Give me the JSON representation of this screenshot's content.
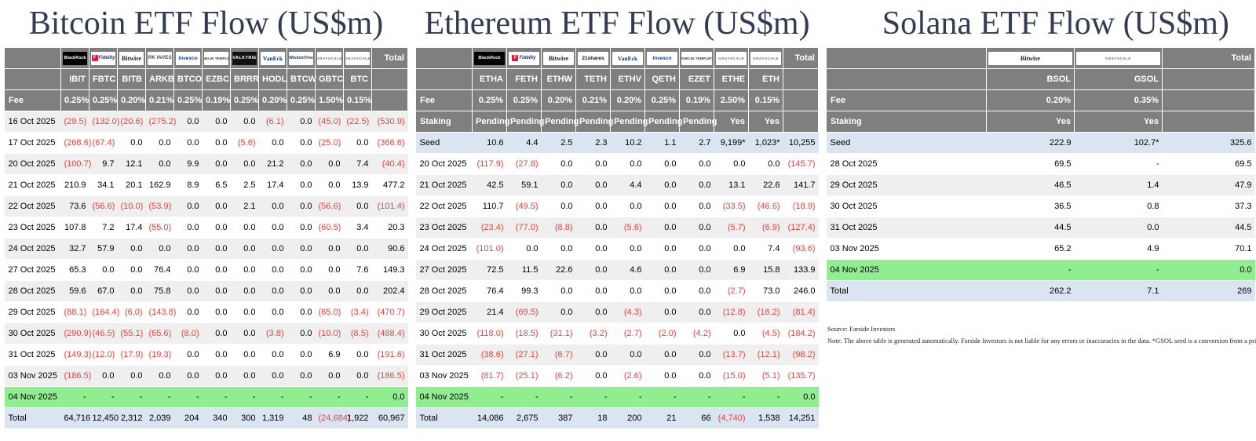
{
  "page": {
    "source_line": "Source: Farside Investors",
    "note_line": "Note: The above table is generated automatically. Farside Investors is not liable for any errors or inaccuracies in the data. *GSOL seed is a conversion from a prior product."
  },
  "colors": {
    "header_bg": "#7f7f7f",
    "title_text": "#333c55",
    "negative_red": "#f0413c",
    "latest_row_green": "#90ee90",
    "total_row_blue": "#dbe4f1",
    "stripe_gray": "#efefef"
  },
  "tables": [
    {
      "id": "bitcoin",
      "title": "Bitcoin ETF Flow (US$m)",
      "total_label": "Total",
      "providers": [
        "BlackRock",
        "Fidelity",
        "Bitwise",
        "ARK INVEST",
        "Invesco",
        "FRANKLIN TEMPLETON",
        "VALKYRIE",
        "VanEck",
        "WisdomTree",
        "GRAYSCALE",
        "GRAYSCALE"
      ],
      "tickers": [
        "IBIT",
        "FBTC",
        "BITB",
        "ARKB",
        "BTCO",
        "EZBC",
        "BRRR",
        "HODL",
        "BTCW",
        "GBTC",
        "BTC"
      ],
      "meta_rows": [
        {
          "label": "Fee",
          "values": [
            "0.25%",
            "0.25%",
            "0.20%",
            "0.21%",
            "0.25%",
            "0.19%",
            "0.25%",
            "0.20%",
            "0.25%",
            "1.50%",
            "0.15%"
          ]
        }
      ],
      "rows": [
        {
          "label": "16 Oct 2025",
          "kind": "date",
          "values": [
            "(29.5)",
            "(132.0)",
            "(20.6)",
            "(275.2)",
            "0.0",
            "0.0",
            "0.0",
            "(6.1)",
            "0.0",
            "(45.0)",
            "(22.5)"
          ],
          "total": "(530.9)"
        },
        {
          "label": "17 Oct 2025",
          "kind": "date",
          "values": [
            "(268.6)",
            "(67.4)",
            "0.0",
            "0.0",
            "0.0",
            "0.0",
            "(5.6)",
            "0.0",
            "0.0",
            "(25.0)",
            "0.0"
          ],
          "total": "(366.6)"
        },
        {
          "label": "20 Oct 2025",
          "kind": "date",
          "values": [
            "(100.7)",
            "9.7",
            "12.1",
            "0.0",
            "9.9",
            "0.0",
            "0.0",
            "21.2",
            "0.0",
            "0.0",
            "7.4"
          ],
          "total": "(40.4)"
        },
        {
          "label": "21 Oct 2025",
          "kind": "date",
          "values": [
            "210.9",
            "34.1",
            "20.1",
            "162.9",
            "8.9",
            "6.5",
            "2.5",
            "17.4",
            "0.0",
            "0.0",
            "13.9"
          ],
          "total": "477.2"
        },
        {
          "label": "22 Oct 2025",
          "kind": "date",
          "values": [
            "73.6",
            "(56.6)",
            "(10.0)",
            "(53.9)",
            "0.0",
            "0.0",
            "2.1",
            "0.0",
            "0.0",
            "(56.6)",
            "0.0"
          ],
          "total": "(101.4)"
        },
        {
          "label": "23 Oct 2025",
          "kind": "date",
          "values": [
            "107.8",
            "7.2",
            "17.4",
            "(55.0)",
            "0.0",
            "0.0",
            "0.0",
            "0.0",
            "0.0",
            "(60.5)",
            "3.4"
          ],
          "total": "20.3"
        },
        {
          "label": "24 Oct 2025",
          "kind": "date",
          "values": [
            "32.7",
            "57.9",
            "0.0",
            "0.0",
            "0.0",
            "0.0",
            "0.0",
            "0.0",
            "0.0",
            "0.0",
            "0.0"
          ],
          "total": "90.6"
        },
        {
          "label": "27 Oct 2025",
          "kind": "date",
          "values": [
            "65.3",
            "0.0",
            "0.0",
            "76.4",
            "0.0",
            "0.0",
            "0.0",
            "0.0",
            "0.0",
            "0.0",
            "7.6"
          ],
          "total": "149.3"
        },
        {
          "label": "28 Oct 2025",
          "kind": "date",
          "values": [
            "59.6",
            "67.0",
            "0.0",
            "75.8",
            "0.0",
            "0.0",
            "0.0",
            "0.0",
            "0.0",
            "0.0",
            "0.0"
          ],
          "total": "202.4"
        },
        {
          "label": "29 Oct 2025",
          "kind": "date",
          "values": [
            "(88.1)",
            "(164.4)",
            "(6.0)",
            "(143.8)",
            "0.0",
            "0.0",
            "0.0",
            "0.0",
            "0.0",
            "(65.0)",
            "(3.4)"
          ],
          "total": "(470.7)"
        },
        {
          "label": "30 Oct 2025",
          "kind": "date",
          "values": [
            "(290.9)",
            "(46.5)",
            "(55.1)",
            "(65.6)",
            "(8.0)",
            "0.0",
            "0.0",
            "(3.8)",
            "0.0",
            "(10.0)",
            "(8.5)"
          ],
          "total": "(488.4)"
        },
        {
          "label": "31 Oct 2025",
          "kind": "date",
          "values": [
            "(149.3)",
            "(12.0)",
            "(17.9)",
            "(19.3)",
            "0.0",
            "0.0",
            "0.0",
            "0.0",
            "0.0",
            "6.9",
            "0.0"
          ],
          "total": "(191.6)"
        },
        {
          "label": "03 Nov 2025",
          "kind": "date",
          "values": [
            "(186.5)",
            "0.0",
            "0.0",
            "0.0",
            "0.0",
            "0.0",
            "0.0",
            "0.0",
            "0.0",
            "0.0",
            "0.0"
          ],
          "total": "(186.5)"
        },
        {
          "label": "04 Nov 2025",
          "kind": "latest",
          "values": [
            "-",
            "-",
            "-",
            "-",
            "-",
            "-",
            "-",
            "-",
            "-",
            "-",
            "-"
          ],
          "total": "0.0"
        },
        {
          "label": "Total",
          "kind": "total",
          "values": [
            "64,716",
            "12,450",
            "2,312",
            "2,039",
            "204",
            "340",
            "300",
            "1,319",
            "48",
            "(24,684)",
            "1,922"
          ],
          "total": "60,967"
        }
      ]
    },
    {
      "id": "ethereum",
      "title": "Ethereum ETF Flow (US$m)",
      "total_label": "Total",
      "providers": [
        "BlackRock",
        "Fidelity",
        "Bitwise",
        "21shares",
        "VanEck",
        "Invesco",
        "FRANKLIN TEMPLETON",
        "GRAYSCALE",
        "GRAYSCALE"
      ],
      "tickers": [
        "ETHA",
        "FETH",
        "ETHW",
        "TETH",
        "ETHV",
        "QETH",
        "EZET",
        "ETHE",
        "ETH"
      ],
      "meta_rows": [
        {
          "label": "Fee",
          "values": [
            "0.25%",
            "0.25%",
            "0.20%",
            "0.21%",
            "0.20%",
            "0.25%",
            "0.19%",
            "2.50%",
            "0.15%"
          ]
        },
        {
          "label": "Staking",
          "values": [
            "Pending",
            "Pending",
            "Pending",
            "Pending",
            "Pending",
            "Pending",
            "Pending",
            "Yes",
            "Yes"
          ]
        }
      ],
      "rows": [
        {
          "label": "Seed",
          "kind": "seed",
          "values": [
            "10.6",
            "4.4",
            "2.5",
            "2.3",
            "10.2",
            "1.1",
            "2.7",
            "9,199*",
            "1,023*"
          ],
          "total": "10,255"
        },
        {
          "label": "20 Oct 2025",
          "kind": "date",
          "values": [
            "(117.9)",
            "(27.8)",
            "0.0",
            "0.0",
            "0.0",
            "0.0",
            "0.0",
            "0.0",
            "0.0"
          ],
          "total": "(145.7)"
        },
        {
          "label": "21 Oct 2025",
          "kind": "date",
          "values": [
            "42.5",
            "59.1",
            "0.0",
            "0.0",
            "4.4",
            "0.0",
            "0.0",
            "13.1",
            "22.6"
          ],
          "total": "141.7"
        },
        {
          "label": "22 Oct 2025",
          "kind": "date",
          "values": [
            "110.7",
            "(49.5)",
            "0.0",
            "0.0",
            "0.0",
            "0.0",
            "0.0",
            "(33.5)",
            "(46.6)"
          ],
          "total": "(18.9)"
        },
        {
          "label": "23 Oct 2025",
          "kind": "date",
          "values": [
            "(23.4)",
            "(77.0)",
            "(8.8)",
            "0.0",
            "(5.6)",
            "0.0",
            "0.0",
            "(5.7)",
            "(6.9)"
          ],
          "total": "(127.4)"
        },
        {
          "label": "24 Oct 2025",
          "kind": "date",
          "values": [
            "(101.0)",
            "0.0",
            "0.0",
            "0.0",
            "0.0",
            "0.0",
            "0.0",
            "0.0",
            "7.4"
          ],
          "total": "(93.6)"
        },
        {
          "label": "27 Oct 2025",
          "kind": "date",
          "values": [
            "72.5",
            "11.5",
            "22.6",
            "0.0",
            "4.6",
            "0.0",
            "0.0",
            "6.9",
            "15.8"
          ],
          "total": "133.9"
        },
        {
          "label": "28 Oct 2025",
          "kind": "date",
          "values": [
            "76.4",
            "99.3",
            "0.0",
            "0.0",
            "0.0",
            "0.0",
            "0.0",
            "(2.7)",
            "73.0"
          ],
          "total": "246.0"
        },
        {
          "label": "29 Oct 2025",
          "kind": "date",
          "values": [
            "21.4",
            "(69.5)",
            "0.0",
            "0.0",
            "(4.3)",
            "0.0",
            "0.0",
            "(12.8)",
            "(16.2)"
          ],
          "total": "(81.4)"
        },
        {
          "label": "30 Oct 2025",
          "kind": "date",
          "values": [
            "(118.0)",
            "(18.5)",
            "(31.1)",
            "(3.2)",
            "(2.7)",
            "(2.0)",
            "(4.2)",
            "0.0",
            "(4.5)"
          ],
          "total": "(184.2)"
        },
        {
          "label": "31 Oct 2025",
          "kind": "date",
          "values": [
            "(38.6)",
            "(27.1)",
            "(6.7)",
            "0.0",
            "0.0",
            "0.0",
            "0.0",
            "(13.7)",
            "(12.1)"
          ],
          "total": "(98.2)"
        },
        {
          "label": "03 Nov 2025",
          "kind": "date",
          "values": [
            "(81.7)",
            "(25.1)",
            "(6.2)",
            "0.0",
            "(2.6)",
            "0.0",
            "0.0",
            "(15.0)",
            "(5.1)"
          ],
          "total": "(135.7)"
        },
        {
          "label": "04 Nov 2025",
          "kind": "latest",
          "values": [
            "-",
            "-",
            "-",
            "-",
            "-",
            "-",
            "-",
            "-",
            "-"
          ],
          "total": "0.0"
        },
        {
          "label": "Total",
          "kind": "total",
          "values": [
            "14,086",
            "2,675",
            "387",
            "18",
            "200",
            "21",
            "66",
            "(4,740)",
            "1,538"
          ],
          "total": "14,251"
        }
      ]
    },
    {
      "id": "solana",
      "title": "Solana ETF Flow (US$m)",
      "total_label": "Total",
      "providers": [
        "Bitwise",
        "GRAYSCALE"
      ],
      "tickers": [
        "BSOL",
        "GSOL"
      ],
      "meta_rows": [
        {
          "label": "Fee",
          "values": [
            "0.20%",
            "0.35%"
          ]
        },
        {
          "label": "Staking",
          "values": [
            "Yes",
            "Yes"
          ]
        }
      ],
      "rows": [
        {
          "label": "Seed",
          "kind": "seed",
          "values": [
            "222.9",
            "102.7*"
          ],
          "total": "325.6"
        },
        {
          "label": "28 Oct 2025",
          "kind": "date",
          "values": [
            "69.5",
            "-"
          ],
          "total": "69.5"
        },
        {
          "label": "29 Oct 2025",
          "kind": "date",
          "values": [
            "46.5",
            "1.4"
          ],
          "total": "47.9"
        },
        {
          "label": "30 Oct 2025",
          "kind": "date",
          "values": [
            "36.5",
            "0.8"
          ],
          "total": "37.3"
        },
        {
          "label": "31 Oct 2025",
          "kind": "date",
          "values": [
            "44.5",
            "0.0"
          ],
          "total": "44.5"
        },
        {
          "label": "03 Nov 2025",
          "kind": "date",
          "values": [
            "65.2",
            "4.9"
          ],
          "total": "70.1"
        },
        {
          "label": "04 Nov 2025",
          "kind": "latest",
          "values": [
            "-",
            "-"
          ],
          "total": "0.0"
        },
        {
          "label": "Total",
          "kind": "total",
          "values": [
            "262.2",
            "7.1"
          ],
          "total": "269"
        }
      ]
    }
  ]
}
